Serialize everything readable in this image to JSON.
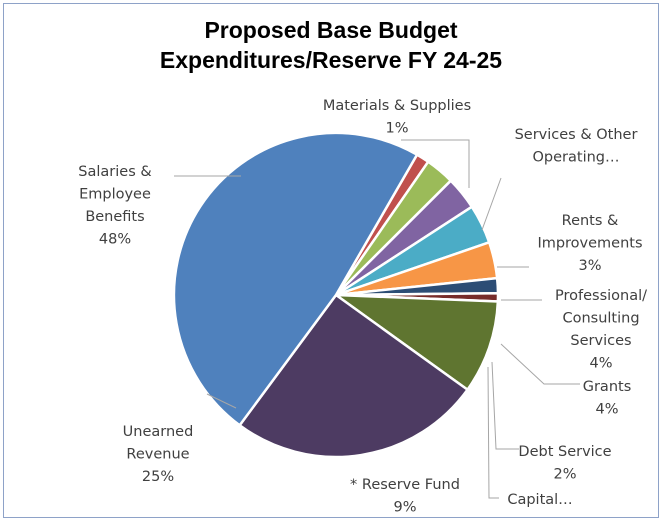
{
  "chart_data": {
    "type": "pie",
    "title_lines": [
      "Proposed Base Budget",
      "Expenditures/Reserve FY 24-25"
    ],
    "start_angle_deg": 30,
    "direction": "clockwise",
    "slices": [
      {
        "label_lines": [
          "Materials & Supplies",
          "1%"
        ],
        "value": 1.3,
        "color": "#c0504d"
      },
      {
        "label_lines": [
          "Services & Other",
          "Operating…"
        ],
        "value": 2.9,
        "color": "#9bbb59"
      },
      {
        "label_lines": [
          "Rents &",
          "Improvements",
          "3%"
        ],
        "value": 3.3,
        "color": "#8064a2"
      },
      {
        "label_lines": [
          "Professional/",
          "Consulting",
          "Services",
          "4%"
        ],
        "value": 3.9,
        "color": "#4bacc6"
      },
      {
        "label_lines": [
          "Grants",
          "4%"
        ],
        "value": 3.6,
        "color": "#f79646"
      },
      {
        "label_lines": [
          "Debt Service",
          "2%"
        ],
        "value": 1.5,
        "color": "#2c4d75"
      },
      {
        "label_lines": [
          "Capital…"
        ],
        "value": 0.8,
        "color": "#772c2a"
      },
      {
        "label_lines": [
          "* Reserve Fund",
          "9%"
        ],
        "value": 9.3,
        "color": "#5f7530"
      },
      {
        "label_lines": [
          "Unearned",
          "Revenue",
          "25%"
        ],
        "value": 25.2,
        "color": "#4d3b62"
      },
      {
        "label_lines": [
          "Salaries &",
          "Employee",
          "Benefits",
          "48%"
        ],
        "value": 48.2,
        "color": "#4f81bd"
      }
    ]
  }
}
